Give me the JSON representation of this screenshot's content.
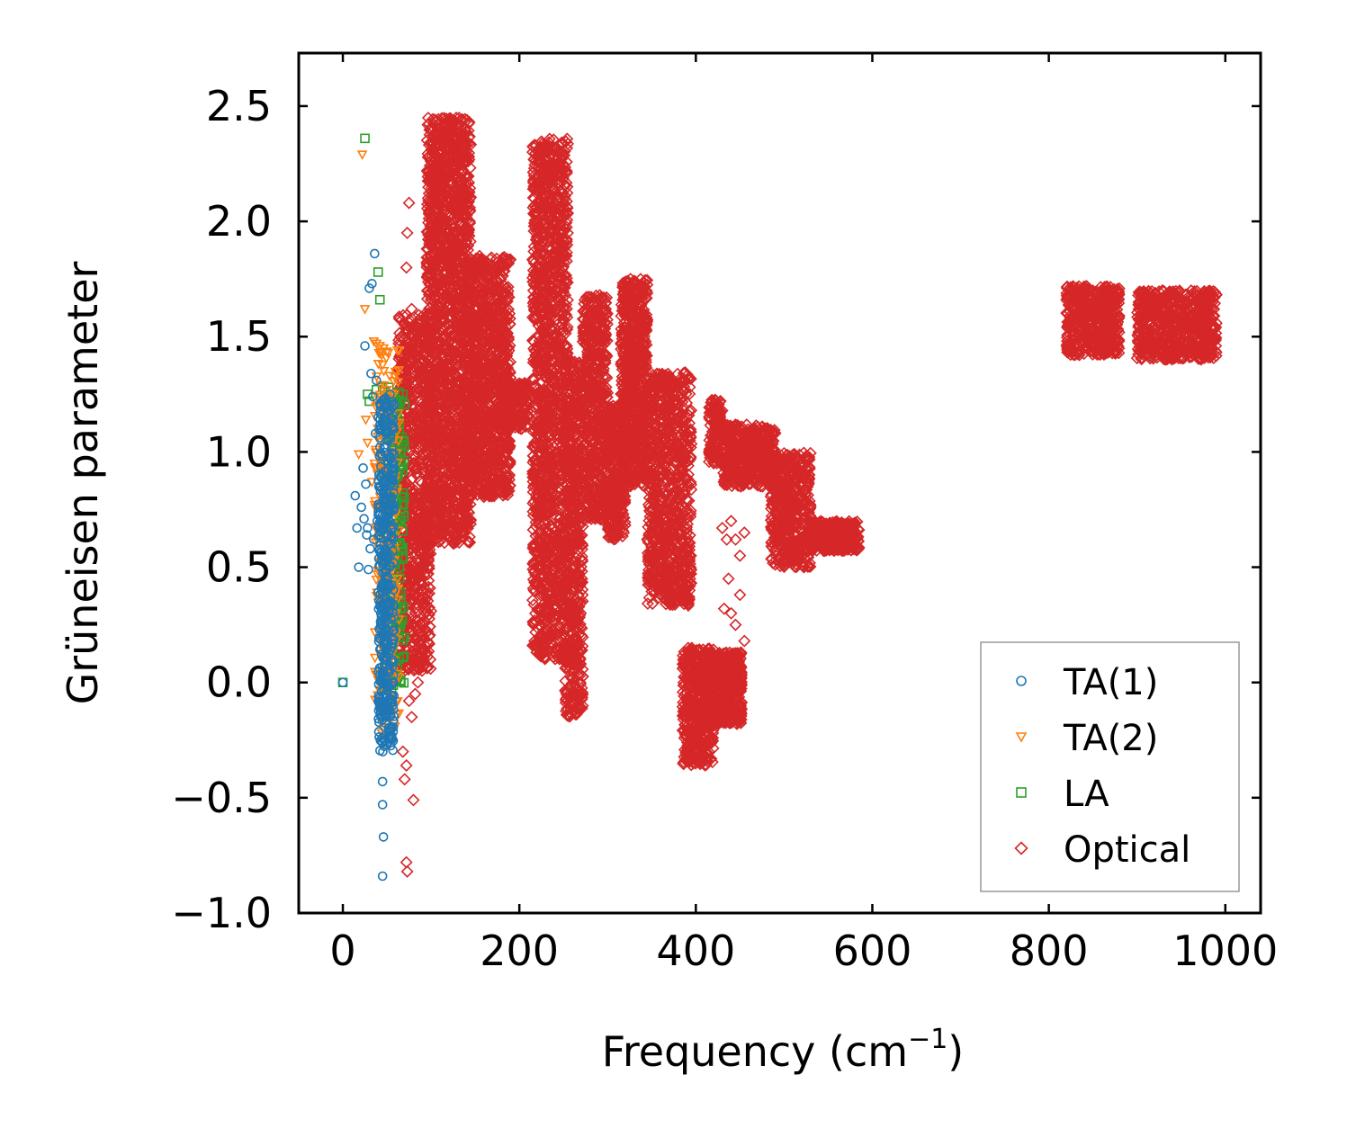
{
  "chart_data": {
    "type": "scatter",
    "title": "",
    "xlabel": "Frequency (cm",
    "xlabel_sup": "−1",
    "xlabel_close": ")",
    "ylabel": "Grüneisen parameter",
    "xlim": [
      -50,
      1040
    ],
    "ylim": [
      -1.0,
      2.73
    ],
    "xticks": [
      0,
      200,
      400,
      600,
      800,
      1000
    ],
    "xtick_labels": [
      "0",
      "200",
      "400",
      "600",
      "800",
      "1000"
    ],
    "yticks": [
      -1.0,
      -0.5,
      0.0,
      0.5,
      1.0,
      1.5,
      2.0,
      2.5
    ],
    "ytick_labels": [
      "−1.0",
      "−0.5",
      "0.0",
      "0.5",
      "1.0",
      "1.5",
      "2.0",
      "2.5"
    ],
    "grid": false,
    "legend_position": "lower-right",
    "series": [
      {
        "name": "TA(1)",
        "marker": "circle",
        "color": "#1f77b4",
        "points": [
          [
            0,
            0
          ],
          [
            14,
            0.81
          ],
          [
            16,
            0.67
          ],
          [
            18,
            0.5
          ],
          [
            21,
            0.76
          ],
          [
            23,
            0.93
          ],
          [
            24,
            0.71
          ],
          [
            25,
            1.46
          ],
          [
            26,
            0.86
          ],
          [
            27,
            0.64
          ],
          [
            28,
            0.67
          ],
          [
            29,
            0.49
          ],
          [
            30,
            1.71
          ],
          [
            31,
            0.58
          ],
          [
            32,
            1.34
          ],
          [
            33,
            1.73
          ],
          [
            34,
            1.24
          ],
          [
            35,
            0.62
          ],
          [
            36,
            1.86
          ],
          [
            37,
            1.08
          ],
          [
            38,
            1.31
          ],
          [
            39,
            0.7
          ],
          [
            40,
            1.15
          ],
          [
            41,
            0.9
          ],
          [
            42,
            1.02
          ],
          [
            43,
            0.3
          ],
          [
            44,
            0.55
          ],
          [
            45,
            -0.43
          ],
          [
            45,
            -0.53
          ],
          [
            46,
            -0.67
          ],
          [
            45,
            -0.84
          ],
          [
            44,
            -0.04
          ],
          [
            44,
            -0.15
          ],
          [
            45,
            -0.26
          ],
          [
            46,
            0.05
          ],
          [
            47,
            0.2
          ],
          [
            48,
            0.45
          ],
          [
            49,
            0.8
          ],
          [
            50,
            1.05
          ],
          [
            51,
            0.35
          ],
          [
            52,
            0.6
          ],
          [
            48,
            1.2
          ],
          [
            46,
            0.9
          ],
          [
            44,
            0.7
          ],
          [
            47,
            0.1
          ],
          [
            50,
            0.55
          ],
          [
            53,
            0.75
          ],
          [
            42,
            0.85
          ],
          [
            43,
            1.1
          ],
          [
            51,
            0.95
          ]
        ],
        "blobs": [
          {
            "x": [
              40,
              58
            ],
            "y": [
              -0.3,
              1.25
            ],
            "n": 420
          }
        ]
      },
      {
        "name": "TA(2)",
        "marker": "triangle-down",
        "color": "#ff7f0e",
        "points": [
          [
            22,
            2.29
          ],
          [
            25,
            1.62
          ],
          [
            18,
            0.99
          ],
          [
            28,
            1.04
          ],
          [
            26,
            1.14
          ],
          [
            35,
            1.48
          ],
          [
            38,
            1.47
          ],
          [
            42,
            1.46
          ],
          [
            44,
            1.42
          ],
          [
            40,
            0.98
          ],
          [
            33,
            0.87
          ],
          [
            36,
            0.95
          ],
          [
            44,
            -0.22
          ],
          [
            48,
            -0.23
          ],
          [
            46,
            0.38
          ],
          [
            48,
            0.23
          ],
          [
            52,
            0.65
          ],
          [
            55,
            0.85
          ],
          [
            58,
            1.05
          ],
          [
            60,
            0.3
          ],
          [
            62,
            0.45
          ]
        ],
        "blobs": [
          {
            "x": [
              36,
              64
            ],
            "y": [
              -0.2,
              1.45
            ],
            "n": 200
          }
        ]
      },
      {
        "name": "LA",
        "marker": "square",
        "color": "#2ca02c",
        "points": [
          [
            0,
            0
          ],
          [
            25,
            2.36
          ],
          [
            40,
            1.78
          ],
          [
            42,
            1.66
          ],
          [
            28,
            1.25
          ],
          [
            30,
            1.22
          ],
          [
            38,
            1.27
          ],
          [
            45,
            1.28
          ],
          [
            52,
            1.28
          ],
          [
            57,
            1.16
          ],
          [
            63,
            1.05
          ],
          [
            65,
            1.0
          ],
          [
            68,
            0.92
          ],
          [
            62,
            0.55
          ],
          [
            58,
            0.45
          ],
          [
            55,
            0.28
          ],
          [
            60,
            0.22
          ],
          [
            57,
            0.05
          ],
          [
            55,
            0.0
          ],
          [
            64,
            0.6
          ],
          [
            66,
            0.7
          ],
          [
            60,
            0.8
          ],
          [
            62,
            0.98
          ]
        ],
        "blobs": [
          {
            "x": [
              45,
              70
            ],
            "y": [
              -0.05,
              1.3
            ],
            "n": 220
          }
        ]
      },
      {
        "name": "Optical",
        "marker": "diamond",
        "color": "#d62728",
        "points": [
          [
            72,
            -0.78
          ],
          [
            73,
            -0.82
          ],
          [
            80,
            -0.51
          ],
          [
            72,
            -0.36
          ],
          [
            70,
            -0.42
          ],
          [
            78,
            -0.15
          ],
          [
            75,
            -0.08
          ],
          [
            68,
            0.28
          ],
          [
            70,
            0.45
          ],
          [
            75,
            2.08
          ],
          [
            73,
            1.95
          ],
          [
            72,
            1.8
          ],
          [
            78,
            1.62
          ],
          [
            74,
            1.47
          ],
          [
            82,
            -0.05
          ],
          [
            85,
            0.0
          ],
          [
            68,
            -0.3
          ],
          [
            440,
            0.7
          ],
          [
            445,
            0.62
          ],
          [
            450,
            0.55
          ],
          [
            455,
            0.65
          ],
          [
            430,
            0.67
          ],
          [
            435,
            0.62
          ],
          [
            440,
            0.3
          ],
          [
            445,
            0.25
          ],
          [
            450,
            0.38
          ],
          [
            455,
            0.18
          ],
          [
            432,
            0.32
          ],
          [
            437,
            0.45
          ]
        ],
        "blobs": [
          {
            "x": [
              62,
              100
            ],
            "y": [
              0.05,
              1.6
            ],
            "n": 900
          },
          {
            "x": [
              95,
              145
            ],
            "y": [
              0.6,
              2.45
            ],
            "n": 1800
          },
          {
            "x": [
              140,
              190
            ],
            "y": [
              0.8,
              1.85
            ],
            "n": 1100
          },
          {
            "x": [
              180,
              210
            ],
            "y": [
              1.1,
              1.3
            ],
            "n": 200
          },
          {
            "x": [
              215,
              255
            ],
            "y": [
              0.1,
              2.36
            ],
            "n": 1600
          },
          {
            "x": [
              252,
              272
            ],
            "y": [
              -0.15,
              1.4
            ],
            "n": 600
          },
          {
            "x": [
              272,
              300
            ],
            "y": [
              0.7,
              1.68
            ],
            "n": 600
          },
          {
            "x": [
              300,
              320
            ],
            "y": [
              0.62,
              1.2
            ],
            "n": 350
          },
          {
            "x": [
              315,
              345
            ],
            "y": [
              0.85,
              1.75
            ],
            "n": 700
          },
          {
            "x": [
              345,
              395
            ],
            "y": [
              0.33,
              1.35
            ],
            "n": 900
          },
          {
            "x": [
              385,
              420
            ],
            "y": [
              -0.36,
              0.15
            ],
            "n": 500
          },
          {
            "x": [
              418,
              452
            ],
            "y": [
              -0.18,
              0.13
            ],
            "n": 500
          },
          {
            "x": [
              415,
              430
            ],
            "y": [
              0.95,
              1.23
            ],
            "n": 120
          },
          {
            "x": [
              430,
              490
            ],
            "y": [
              0.85,
              1.12
            ],
            "n": 500
          },
          {
            "x": [
              485,
              530
            ],
            "y": [
              0.5,
              1.0
            ],
            "n": 500
          },
          {
            "x": [
              530,
              585
            ],
            "y": [
              0.57,
              0.7
            ],
            "n": 350
          },
          {
            "x": [
              820,
              880
            ],
            "y": [
              1.42,
              1.72
            ],
            "n": 500
          },
          {
            "x": [
              900,
              990
            ],
            "y": [
              1.4,
              1.7
            ],
            "n": 700
          }
        ]
      }
    ]
  }
}
